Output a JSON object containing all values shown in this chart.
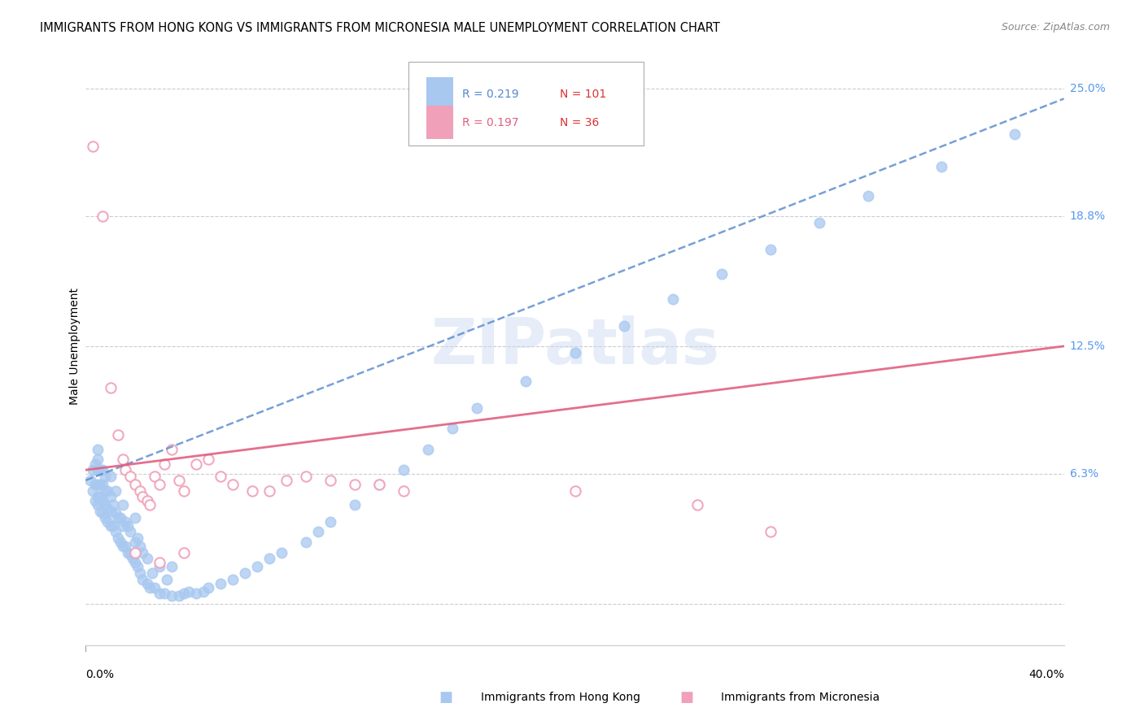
{
  "title": "IMMIGRANTS FROM HONG KONG VS IMMIGRANTS FROM MICRONESIA MALE UNEMPLOYMENT CORRELATION CHART",
  "source": "Source: ZipAtlas.com",
  "ylabel": "Male Unemployment",
  "xlim": [
    0.0,
    0.4
  ],
  "ylim": [
    -0.02,
    0.27
  ],
  "ytick_positions": [
    0.0,
    0.063,
    0.125,
    0.188,
    0.25
  ],
  "ytick_labels_right": [
    "",
    "6.3%",
    "12.5%",
    "18.8%",
    "25.0%"
  ],
  "legend_hk_R": "0.219",
  "legend_hk_N": "101",
  "legend_mic_R": "0.197",
  "legend_mic_N": "36",
  "color_hk": "#a8c8f0",
  "color_mic": "#f0a0b8",
  "color_hk_line": "#5588cc",
  "color_mic_line": "#e06080",
  "color_grid": "#cccccc",
  "color_ytick": "#5599ee",
  "hk_line_start_y": 0.06,
  "hk_line_end_y": 0.245,
  "mic_line_start_y": 0.065,
  "mic_line_end_y": 0.125,
  "hk_x": [
    0.002,
    0.003,
    0.003,
    0.004,
    0.004,
    0.004,
    0.005,
    0.005,
    0.005,
    0.005,
    0.005,
    0.005,
    0.006,
    0.006,
    0.006,
    0.006,
    0.007,
    0.007,
    0.007,
    0.007,
    0.008,
    0.008,
    0.008,
    0.008,
    0.009,
    0.009,
    0.009,
    0.01,
    0.01,
    0.01,
    0.01,
    0.011,
    0.011,
    0.012,
    0.012,
    0.012,
    0.013,
    0.013,
    0.014,
    0.014,
    0.015,
    0.015,
    0.015,
    0.016,
    0.016,
    0.017,
    0.017,
    0.018,
    0.018,
    0.019,
    0.02,
    0.02,
    0.02,
    0.021,
    0.021,
    0.022,
    0.022,
    0.023,
    0.023,
    0.025,
    0.025,
    0.026,
    0.027,
    0.028,
    0.03,
    0.03,
    0.032,
    0.033,
    0.035,
    0.035,
    0.038,
    0.04,
    0.042,
    0.045,
    0.048,
    0.05,
    0.055,
    0.06,
    0.065,
    0.07,
    0.075,
    0.08,
    0.09,
    0.095,
    0.1,
    0.11,
    0.12,
    0.13,
    0.14,
    0.15,
    0.16,
    0.18,
    0.2,
    0.22,
    0.24,
    0.26,
    0.28,
    0.3,
    0.32,
    0.35,
    0.38
  ],
  "hk_y": [
    0.06,
    0.055,
    0.065,
    0.05,
    0.058,
    0.068,
    0.048,
    0.052,
    0.058,
    0.065,
    0.07,
    0.075,
    0.045,
    0.052,
    0.058,
    0.065,
    0.044,
    0.05,
    0.058,
    0.065,
    0.042,
    0.048,
    0.055,
    0.062,
    0.04,
    0.046,
    0.055,
    0.038,
    0.045,
    0.052,
    0.062,
    0.038,
    0.048,
    0.035,
    0.044,
    0.055,
    0.032,
    0.042,
    0.03,
    0.042,
    0.028,
    0.038,
    0.048,
    0.028,
    0.04,
    0.025,
    0.038,
    0.024,
    0.035,
    0.022,
    0.02,
    0.03,
    0.042,
    0.018,
    0.032,
    0.015,
    0.028,
    0.012,
    0.025,
    0.01,
    0.022,
    0.008,
    0.015,
    0.008,
    0.005,
    0.018,
    0.005,
    0.012,
    0.004,
    0.018,
    0.004,
    0.005,
    0.006,
    0.005,
    0.006,
    0.008,
    0.01,
    0.012,
    0.015,
    0.018,
    0.022,
    0.025,
    0.03,
    0.035,
    0.04,
    0.048,
    0.058,
    0.065,
    0.075,
    0.085,
    0.095,
    0.108,
    0.122,
    0.135,
    0.148,
    0.16,
    0.172,
    0.185,
    0.198,
    0.212,
    0.228
  ],
  "mic_x": [
    0.003,
    0.007,
    0.01,
    0.013,
    0.015,
    0.016,
    0.018,
    0.02,
    0.022,
    0.023,
    0.025,
    0.026,
    0.028,
    0.03,
    0.032,
    0.035,
    0.038,
    0.04,
    0.045,
    0.05,
    0.055,
    0.06,
    0.068,
    0.075,
    0.082,
    0.09,
    0.1,
    0.11,
    0.12,
    0.13,
    0.2,
    0.25,
    0.28,
    0.02,
    0.03,
    0.04
  ],
  "mic_y": [
    0.222,
    0.188,
    0.105,
    0.082,
    0.07,
    0.065,
    0.062,
    0.058,
    0.055,
    0.052,
    0.05,
    0.048,
    0.062,
    0.058,
    0.068,
    0.075,
    0.06,
    0.055,
    0.068,
    0.07,
    0.062,
    0.058,
    0.055,
    0.055,
    0.06,
    0.062,
    0.06,
    0.058,
    0.058,
    0.055,
    0.055,
    0.048,
    0.035,
    0.025,
    0.02,
    0.025
  ]
}
